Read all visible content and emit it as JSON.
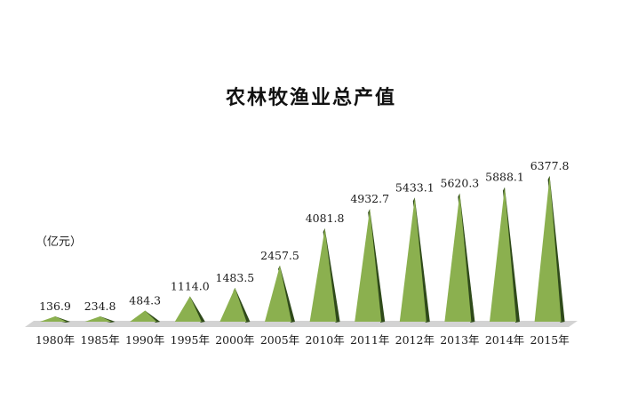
{
  "chart_data": {
    "type": "bar",
    "title": "农林牧渔业总产值",
    "ylabel": "（亿元）",
    "xlabel": "",
    "categories": [
      "1980年",
      "1985年",
      "1990年",
      "1995年",
      "2000年",
      "2005年",
      "2010年",
      "2011年",
      "2012年",
      "2013年",
      "2014年",
      "2015年"
    ],
    "values": [
      136.9,
      234.8,
      484.3,
      1114.0,
      1483.5,
      2457.5,
      4081.8,
      4932.7,
      5433.1,
      5620.3,
      5888.1,
      6377.8
    ],
    "value_labels": [
      "136.9",
      "234.8",
      "484.3",
      "1114.0",
      "1483.5",
      "2457.5",
      "4081.8",
      "4932.7",
      "5433.1",
      "5620.3",
      "5888.1",
      "6377.8"
    ],
    "ylim": [
      0,
      6377.8
    ],
    "grid": false,
    "legend": "none",
    "colors": {
      "cone": "#8bb04f",
      "cone_dark": "#2f4a1a",
      "floor": "#cfcfcf"
    }
  }
}
